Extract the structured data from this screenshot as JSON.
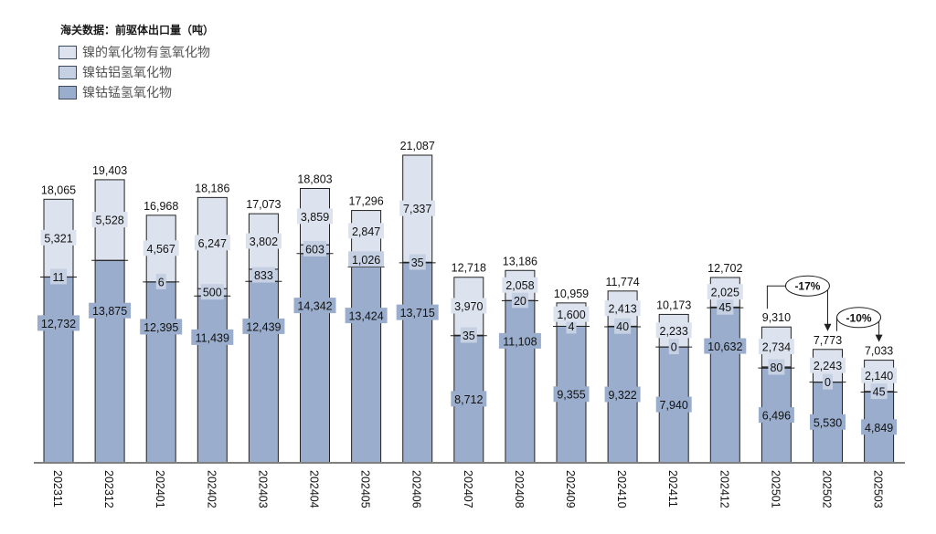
{
  "chart_data": {
    "type": "bar",
    "stacked": true,
    "title": "海关数据：前驱体出口量（吨）",
    "xlabel": "",
    "ylabel": "",
    "categories": [
      "202311",
      "202312",
      "202401",
      "202402",
      "202403",
      "202404",
      "202405",
      "202406",
      "202407",
      "202408",
      "202409",
      "202410",
      "202411",
      "202412",
      "202501",
      "202502",
      "202503"
    ],
    "series": [
      {
        "name": "镍钴锰氢氧化物",
        "color": "#9aadcc",
        "label_bg": "#9aadcc",
        "values": [
          12732,
          13875,
          12395,
          11439,
          12439,
          14342,
          13424,
          13715,
          8712,
          11108,
          9355,
          9322,
          7940,
          10632,
          6496,
          5530,
          4849
        ]
      },
      {
        "name": "镍钴铝氢氧化物",
        "color": "#c5d0e3",
        "label_bg": "#c5d0e3",
        "values": [
          11,
          null,
          6,
          500,
          833,
          603,
          1026,
          35,
          35,
          20,
          4,
          40,
          0,
          45,
          80,
          0,
          45
        ]
      },
      {
        "name": "镍的氧化物有氢氧化物",
        "color": "#dde3ee",
        "label_bg": "#dde3ee",
        "values": [
          5321,
          5528,
          4567,
          6247,
          3802,
          3859,
          2847,
          7337,
          3970,
          2058,
          1600,
          2413,
          2233,
          2025,
          2734,
          2243,
          2140
        ]
      }
    ],
    "totals": [
      18065,
      19403,
      16968,
      18186,
      17073,
      18803,
      17296,
      21087,
      12718,
      13186,
      10959,
      11774,
      10173,
      12702,
      9310,
      7773,
      7033
    ],
    "annotations": [
      {
        "from": "202501",
        "to": "202502",
        "text": "-17%"
      },
      {
        "from": "202502",
        "to": "202503",
        "text": "-10%"
      }
    ],
    "ylim": [
      0,
      22000
    ],
    "grid": false,
    "legend_position": "top-left"
  },
  "legend": {
    "items": [
      {
        "label": "镍的氧化物有氢氧化物",
        "color": "#dde3ee"
      },
      {
        "label": "镍钴铝氢氧化物",
        "color": "#c5d0e3"
      },
      {
        "label": "镍钴锰氢氧化物",
        "color": "#9aadcc"
      }
    ]
  }
}
